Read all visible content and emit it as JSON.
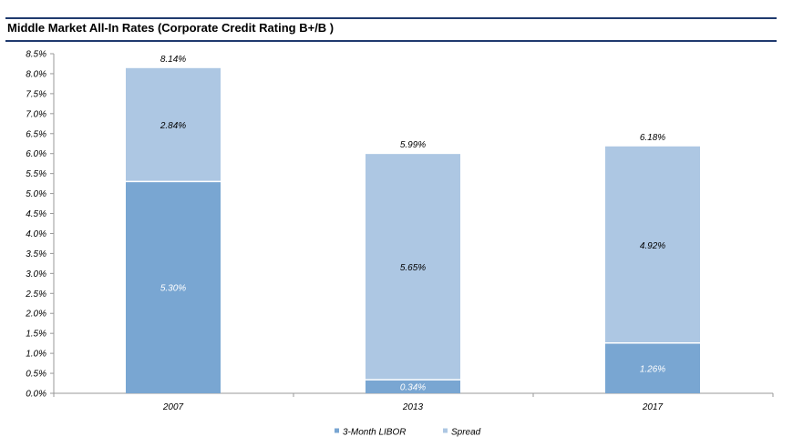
{
  "title": "Middle Market All-In Rates (Corporate Credit Rating B+/B )",
  "colors": {
    "libor": "#79a6d2",
    "spread": "#adc7e3",
    "title_rule": "#1f3a6e",
    "axis": "#999999"
  },
  "chart_data": {
    "type": "bar",
    "stacked": true,
    "categories": [
      "2007",
      "2013",
      "2017"
    ],
    "series": [
      {
        "name": "3-Month LIBOR",
        "values": [
          5.3,
          0.34,
          1.26
        ],
        "labels": [
          "5.30%",
          "0.34%",
          "1.26%"
        ]
      },
      {
        "name": "Spread",
        "values": [
          2.84,
          5.65,
          4.92
        ],
        "labels": [
          "2.84%",
          "5.65%",
          "4.92%"
        ]
      }
    ],
    "totals": [
      8.14,
      5.99,
      6.18
    ],
    "total_labels": [
      "8.14%",
      "5.99%",
      "6.18%"
    ],
    "ylim": [
      0,
      8.5
    ],
    "yticks": [
      "0.0%",
      "0.5%",
      "1.0%",
      "1.5%",
      "2.0%",
      "2.5%",
      "3.0%",
      "3.5%",
      "4.0%",
      "4.5%",
      "5.0%",
      "5.5%",
      "6.0%",
      "6.5%",
      "7.0%",
      "7.5%",
      "8.0%",
      "8.5%"
    ],
    "xlabel": "",
    "ylabel": "",
    "grid": false,
    "legend_position": "bottom-center"
  }
}
